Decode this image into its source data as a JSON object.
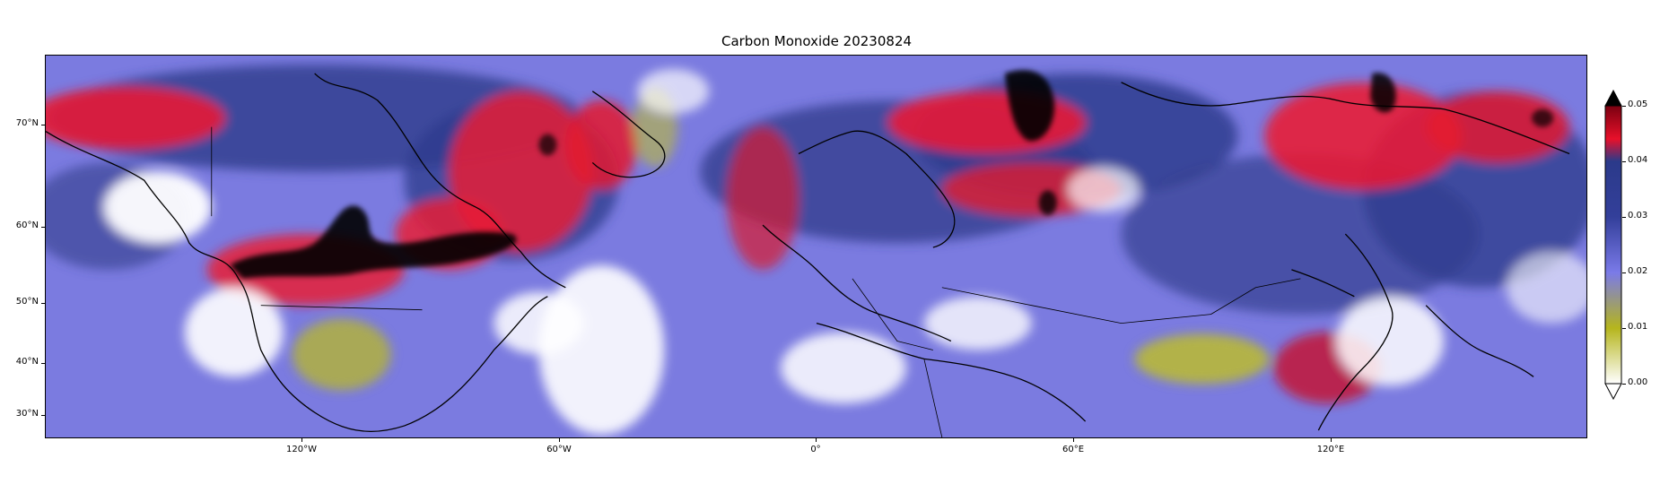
{
  "title": "Carbon Monoxide 20230824",
  "map": {
    "extent": {
      "lon_min": -180,
      "lon_max": 180,
      "lat_min": 26,
      "lat_max": 79
    },
    "latitude_ticks": [
      {
        "value": 70,
        "label": "70°N"
      },
      {
        "value": 60,
        "label": "60°N"
      },
      {
        "value": 50,
        "label": "50°N"
      },
      {
        "value": 40,
        "label": "40°N"
      },
      {
        "value": 30,
        "label": "30°N"
      }
    ],
    "longitude_ticks": [
      {
        "value": -120,
        "label": "120°W"
      },
      {
        "value": -60,
        "label": "60°W"
      },
      {
        "value": 0,
        "label": "0°"
      },
      {
        "value": 60,
        "label": "60°E"
      },
      {
        "value": 120,
        "label": "120°E"
      }
    ]
  },
  "colorbar": {
    "min": 0.0,
    "max": 0.05,
    "extend": "both",
    "ticks": [
      {
        "value": 0.05,
        "label": "0.05"
      },
      {
        "value": 0.04,
        "label": "0.04"
      },
      {
        "value": 0.03,
        "label": "0.03"
      },
      {
        "value": 0.02,
        "label": "0.02"
      },
      {
        "value": 0.01,
        "label": "0.01"
      },
      {
        "value": 0.0,
        "label": "0.00"
      }
    ],
    "colors": {
      "low": "#ffffff",
      "olive": "#b5b51c",
      "light_blue": "#7a7ae8",
      "dark_blue": "#2b3a8a",
      "red": "#e8102a",
      "max": "#000000"
    }
  }
}
